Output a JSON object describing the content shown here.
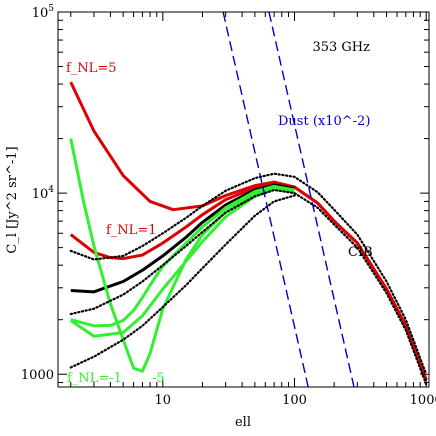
{
  "chart_data": {
    "type": "line",
    "xscale": "log",
    "yscale": "log",
    "xlim": [
      1.6,
      1050
    ],
    "ylim": [
      850,
      100000
    ],
    "xlabel": "ell",
    "ylabel": "C_l [Jy^2 sr^-1]",
    "x_ticks": [
      {
        "value": 10,
        "label": "10"
      },
      {
        "value": 100,
        "label": "100"
      },
      {
        "value": 1000,
        "label": "1000"
      }
    ],
    "y_ticks": [
      {
        "value": 1000,
        "label": "1000"
      },
      {
        "value": 10000,
        "label": "10^4"
      },
      {
        "value": 100000,
        "label": "10^5"
      }
    ],
    "annotations": [
      {
        "text": "353 GHz",
        "color": "#000000"
      },
      {
        "text": "Dust (x10^-2)",
        "color": "#0000cc"
      },
      {
        "text": "CIB",
        "color": "#000000"
      },
      {
        "text": "f_NL=5",
        "color": "#dd0000"
      },
      {
        "text": "f_NL=1",
        "color": "#dd0000"
      },
      {
        "text": "f_NL=-1",
        "color": "#33ee33"
      },
      {
        "text": "-5",
        "color": "#33ee33"
      }
    ],
    "series": [
      {
        "style": "solid",
        "color": "#dd0000",
        "x": [
          2,
          3,
          5,
          8,
          12,
          20,
          30,
          50,
          70,
          100,
          150,
          200,
          300,
          500,
          700,
          1000
        ],
        "y": [
          41000,
          22000,
          12500,
          9000,
          8100,
          8500,
          9700,
          11000,
          11500,
          10800,
          8800,
          7000,
          5300,
          2950,
          1850,
          930
        ]
      },
      {
        "style": "solid",
        "color": "#dd0000",
        "x": [
          2,
          3,
          4,
          5,
          7,
          10,
          15,
          20,
          30,
          50,
          70,
          100,
          150,
          200,
          300,
          500,
          700,
          1000
        ],
        "y": [
          5900,
          4700,
          4400,
          4350,
          4550,
          5300,
          6500,
          7600,
          9200,
          10700,
          11400,
          10800,
          8800,
          7000,
          5300,
          2950,
          1850,
          930
        ]
      },
      {
        "style": "solid",
        "color": "#000000",
        "x": [
          2,
          3,
          5,
          7,
          10,
          15,
          20,
          30,
          50,
          70,
          100
        ],
        "y": [
          2900,
          2850,
          3250,
          3750,
          4500,
          5700,
          6900,
          8600,
          10400,
          11100,
          10600
        ]
      },
      {
        "style": "solid",
        "color": "#33ee33",
        "x": [
          2,
          3,
          4,
          5,
          6,
          7,
          8,
          10,
          15,
          20,
          30,
          50,
          70,
          100
        ],
        "y": [
          2000,
          1850,
          1860,
          1980,
          2250,
          2650,
          3100,
          3950,
          5300,
          6500,
          8300,
          10200,
          10900,
          10400
        ]
      },
      {
        "style": "solid",
        "color": "#33ee33",
        "x": [
          2,
          2.5,
          3,
          4,
          5,
          6,
          7,
          8,
          10,
          15,
          20,
          30,
          50,
          70,
          100
        ],
        "y": [
          20000,
          9000,
          5100,
          2450,
          1550,
          1080,
          1040,
          1300,
          2300,
          4300,
          5900,
          7900,
          9900,
          10700,
          10300
        ]
      },
      {
        "style": "solid",
        "color": "#33ee33",
        "x": [
          2,
          3,
          5,
          7,
          10,
          15,
          20,
          30,
          50,
          70,
          100
        ],
        "y": [
          1980,
          1620,
          1700,
          2100,
          2950,
          4200,
          5400,
          7400,
          9600,
          10500,
          10100
        ]
      },
      {
        "style": "dotted",
        "color": "#000000",
        "x": [
          2,
          3,
          5,
          7,
          10,
          15,
          20,
          30,
          50,
          70,
          100,
          150,
          200,
          300,
          500,
          700,
          1000
        ],
        "y": [
          4800,
          4300,
          4500,
          5100,
          6000,
          7300,
          8500,
          10300,
          12100,
          12800,
          12300,
          10100,
          8100,
          5900,
          3250,
          2000,
          1000
        ]
      },
      {
        "style": "dotted",
        "color": "#000000",
        "x": [
          2,
          3,
          5,
          7,
          10,
          15,
          20,
          30,
          50,
          70,
          100,
          150,
          200,
          300,
          500,
          700,
          1000
        ],
        "y": [
          2150,
          2300,
          2750,
          3250,
          4000,
          5100,
          6100,
          7800,
          9600,
          10400,
          10000,
          8300,
          6700,
          5000,
          2800,
          1750,
          880
        ]
      },
      {
        "style": "dotted",
        "color": "#000000",
        "x": [
          2,
          3,
          5,
          7,
          10,
          15,
          20,
          30,
          50,
          70,
          100
        ],
        "y": [
          1090,
          1250,
          1550,
          1850,
          2350,
          3100,
          3850,
          5200,
          7500,
          9000,
          9700
        ]
      },
      {
        "style": "dashed",
        "color": "#0000cc",
        "x": [
          28.7,
          127
        ],
        "y": [
          100000,
          850
        ]
      },
      {
        "style": "dashed",
        "color": "#0000cc",
        "x": [
          64,
          283
        ],
        "y": [
          100000,
          850
        ]
      }
    ]
  }
}
